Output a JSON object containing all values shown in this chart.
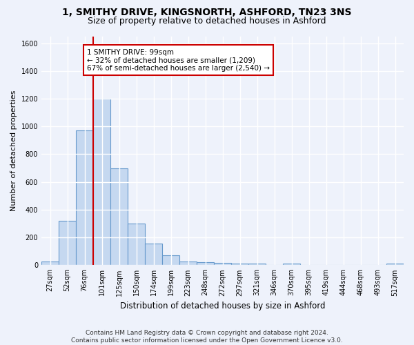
{
  "title_line1": "1, SMITHY DRIVE, KINGSNORTH, ASHFORD, TN23 3NS",
  "title_line2": "Size of property relative to detached houses in Ashford",
  "xlabel": "Distribution of detached houses by size in Ashford",
  "ylabel": "Number of detached properties",
  "categories": [
    "27sqm",
    "52sqm",
    "76sqm",
    "101sqm",
    "125sqm",
    "150sqm",
    "174sqm",
    "199sqm",
    "223sqm",
    "248sqm",
    "272sqm",
    "297sqm",
    "321sqm",
    "346sqm",
    "370sqm",
    "395sqm",
    "419sqm",
    "444sqm",
    "468sqm",
    "493sqm",
    "517sqm"
  ],
  "values": [
    25,
    320,
    970,
    1200,
    700,
    300,
    155,
    70,
    25,
    20,
    15,
    10,
    10,
    0,
    10,
    0,
    0,
    0,
    0,
    0,
    10
  ],
  "bar_color": "#c5d8f0",
  "bar_edge_color": "#6699cc",
  "red_line_index": 2.5,
  "ylim": [
    0,
    1650
  ],
  "yticks": [
    0,
    200,
    400,
    600,
    800,
    1000,
    1200,
    1400,
    1600
  ],
  "annotation_text": "1 SMITHY DRIVE: 99sqm\n← 32% of detached houses are smaller (1,209)\n67% of semi-detached houses are larger (2,540) →",
  "annotation_box_facecolor": "#ffffff",
  "annotation_box_edgecolor": "#cc0000",
  "footer_line1": "Contains HM Land Registry data © Crown copyright and database right 2024.",
  "footer_line2": "Contains public sector information licensed under the Open Government Licence v3.0.",
  "background_color": "#eef2fb",
  "grid_color": "#ffffff",
  "title_fontsize": 10,
  "subtitle_fontsize": 9,
  "ylabel_fontsize": 8,
  "xlabel_fontsize": 8.5,
  "tick_fontsize": 7,
  "annotation_fontsize": 7.5,
  "footer_fontsize": 6.5
}
